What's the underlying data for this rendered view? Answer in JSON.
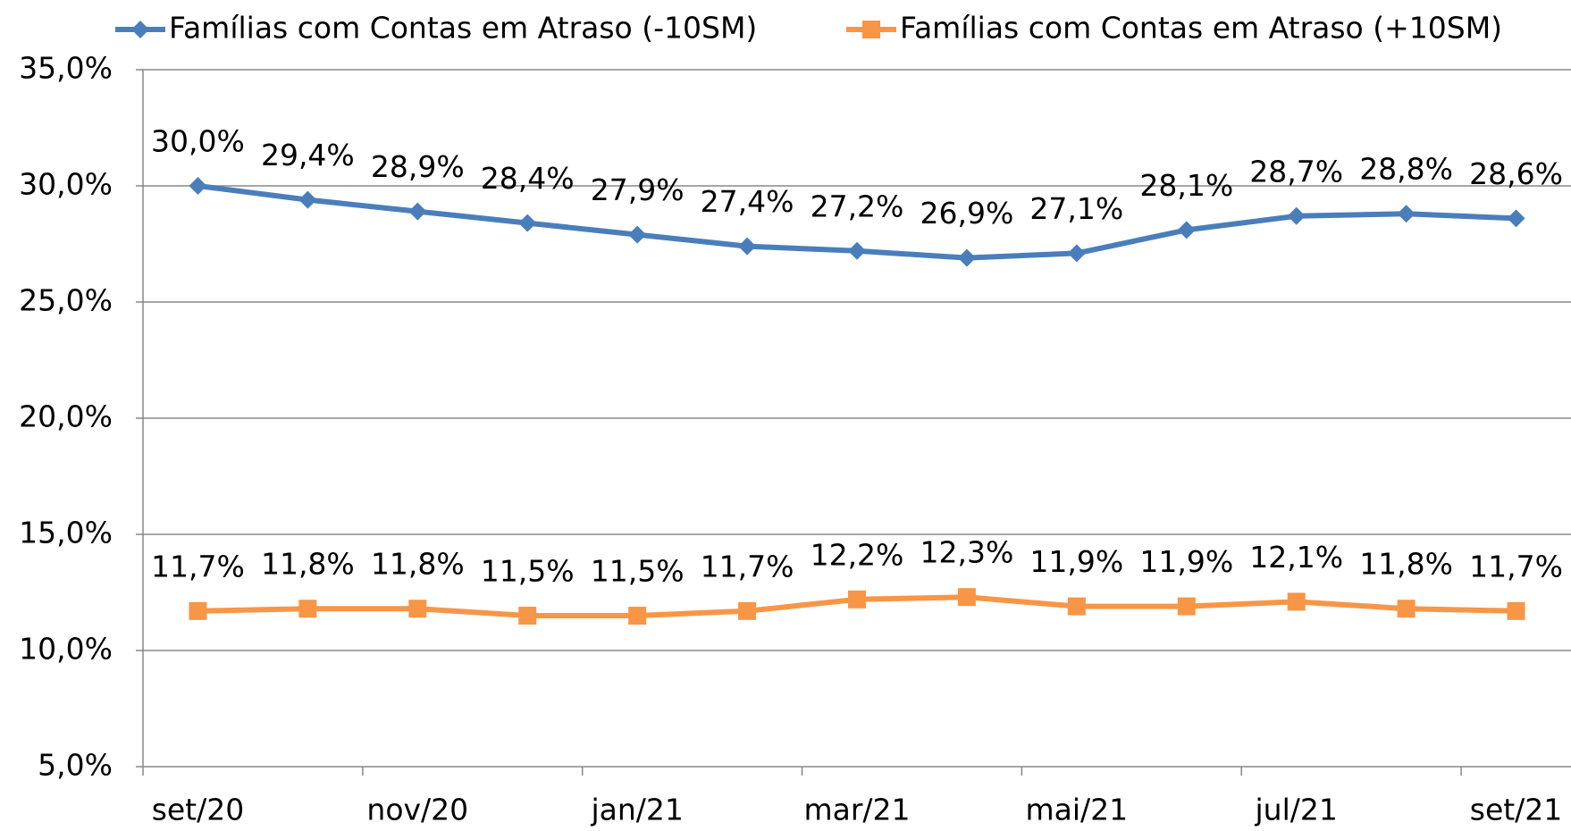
{
  "chart_data": {
    "type": "line",
    "categories": [
      "set/20",
      null,
      "nov/20",
      null,
      "jan/21",
      null,
      "mar/21",
      null,
      "mai/21",
      null,
      "jul/21",
      null,
      "set/21"
    ],
    "series": [
      {
        "name": "Famílias com Contas em Atraso (-10SM)",
        "color": "#4a7ebb",
        "marker": "diamond",
        "values": [
          30.0,
          29.4,
          28.9,
          28.4,
          27.9,
          27.4,
          27.2,
          26.9,
          27.1,
          28.1,
          28.7,
          28.8,
          28.6
        ],
        "value_labels": [
          "30,0%",
          "29,4%",
          "28,9%",
          "28,4%",
          "27,9%",
          "27,4%",
          "27,2%",
          "26,9%",
          "27,1%",
          "28,1%",
          "28,7%",
          "28,8%",
          "28,6%"
        ]
      },
      {
        "name": "Famílias com Contas em Atraso (+10SM)",
        "color": "#f79646",
        "marker": "square",
        "values": [
          11.7,
          11.8,
          11.8,
          11.5,
          11.5,
          11.7,
          12.2,
          12.3,
          11.9,
          11.9,
          12.1,
          11.8,
          11.7
        ],
        "value_labels": [
          "11,7%",
          "11,8%",
          "11,8%",
          "11,5%",
          "11,5%",
          "11,7%",
          "12,2%",
          "12,3%",
          "11,9%",
          "11,9%",
          "12,1%",
          "11,8%",
          "11,7%"
        ]
      }
    ],
    "ylim": [
      5,
      35
    ],
    "yticks": [
      {
        "value": 5,
        "label": "5,0%"
      },
      {
        "value": 10,
        "label": "10,0%"
      },
      {
        "value": 15,
        "label": "15,0%"
      },
      {
        "value": 20,
        "label": "20,0%"
      },
      {
        "value": 25,
        "label": "25,0%"
      },
      {
        "value": 30,
        "label": "30,0%"
      },
      {
        "value": 35,
        "label": "35,0%"
      }
    ],
    "grid": true,
    "legend": "top"
  }
}
